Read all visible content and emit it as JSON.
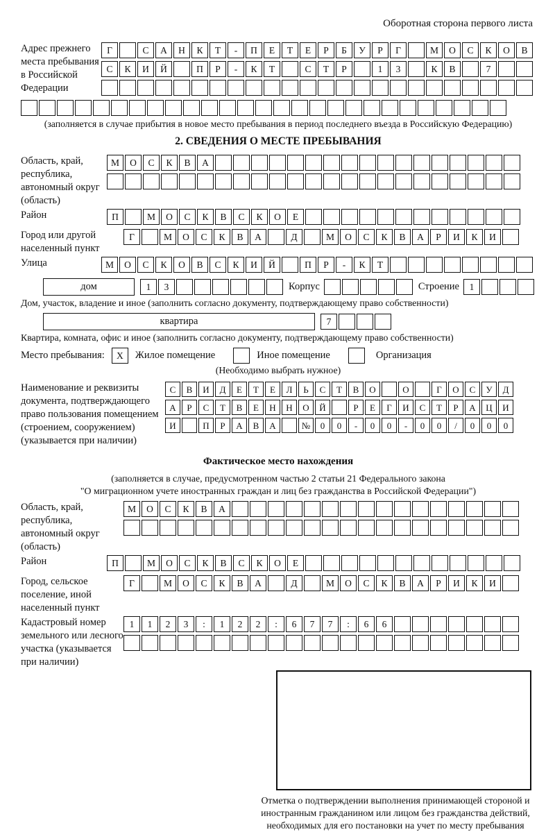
{
  "page": {
    "side_note": "Оборотная сторона первого листа"
  },
  "section1": {
    "label": "Адрес прежнего места пребывания в Российской Федерации",
    "r1": "Г САНКТ-ПЕТЕРБУРГ МОСКОВ",
    "r2": "СКИЙ ПР-КТ СТР 13 КВ 7  ",
    "r3": "                        ",
    "r4": "                           ",
    "note": "(заполняется в случае прибытия в новое место пребывания в период последнего въезда в Российскую Федерацию)"
  },
  "section2": {
    "title": "2. СВЕДЕНИЯ О МЕСТЕ ПРЕБЫВАНИЯ",
    "region": {
      "label": "Область, край, республика, автономный округ (область)",
      "r1": "МОСКВА                 ",
      "r2": "                       "
    },
    "district": {
      "label": "Район",
      "r1": "П МОСКВСКОЕ            "
    },
    "city": {
      "label": "Город или другой населенный пункт",
      "r1": "Г МОСКВА Д МОСКВАРИКИ "
    },
    "street": {
      "label": "Улица",
      "r1": "МОСКОВСКИЙ ПР-КТ        "
    },
    "house": {
      "label": "дом",
      "cells": "13      ",
      "korpus_label": "Корпус",
      "korpus_cells": "     ",
      "stroenie_label": "Строение",
      "stroenie_cells": "1   ",
      "caption": "Дом, участок, владение и иное (заполнить согласно документу, подтверждающему право собственности)"
    },
    "apartment": {
      "label": "квартира",
      "cells": "7   ",
      "caption": "Квартира, комната, офис и иное (заполнить согласно документу, подтверждающему право собственности)"
    },
    "stay_type": {
      "label": "Место пребывания:",
      "values": [
        "X",
        "",
        ""
      ],
      "options": [
        "Жилое помещение",
        "Иное помещение",
        "Организация"
      ],
      "note": "(Необходимо выбрать нужное)"
    },
    "document": {
      "label": "Наименование и реквизиты документа, подтверждающего право пользования помещением (строением, сооружением) (указывается при наличии)",
      "r1": "СВИДЕТЕЛЬСТВО О ГОСУД",
      "r2": "АРСТВЕННОЙ РЕГИСТРАЦИ",
      "r3": "И ПРАВА №00-00-00/000"
    }
  },
  "actual_location": {
    "title": "Фактическое место нахождения",
    "note1": "(заполняется в случае, предусмотренном частью 2 статьи 21 Федерального закона",
    "note2": "\"О миграционном учете иностранных граждан и лиц без гражданства в Российской Федерации\")",
    "region": {
      "label": "Область, край, республика, автономный округ (область)",
      "r1": "МОСКВА                ",
      "r2": "                      "
    },
    "district": {
      "label": "Район",
      "r1": "П МОСКВСКОЕ            "
    },
    "city": {
      "label": "Город, сельское поселение, иной населенный пункт",
      "r1": "Г МОСКВА Д МОСКВАРИКИ "
    },
    "cadastre": {
      "label": "Кадастровый номер земельного или лесного участка (указывается при наличии)",
      "r1": "1123:122:677:66       ",
      "r2": "                      "
    },
    "stamp_caption": "Отметка о подтверждении выполнения принимающей стороной и иностранным гражданином или лицом без гражданства действий, необходимых для его постановки на учет по месту пребывания"
  }
}
